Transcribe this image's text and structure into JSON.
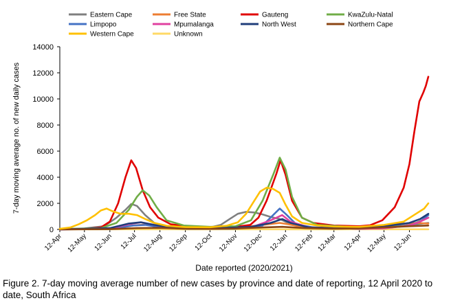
{
  "caption": "Figure 2. 7-day moving average number of new cases by province and date of reporting, 12 April 2020 to date, South Africa",
  "chart_data": {
    "type": "line",
    "title": "",
    "xlabel": "Date reported (2020/2021)",
    "ylabel": "7-day moving average no. of new daily cases",
    "ylim": [
      0,
      14000
    ],
    "yticks": [
      0,
      2000,
      4000,
      6000,
      8000,
      10000,
      12000,
      14000
    ],
    "ytick_labels": [
      "0",
      "2000",
      "4000",
      "6000",
      "8000",
      "10000",
      "12000",
      "14000"
    ],
    "xlim": [
      "2020-04-12",
      "2021-07-05"
    ],
    "xticks": [
      "2020-04-12",
      "2020-05-12",
      "2020-06-12",
      "2020-07-12",
      "2020-08-12",
      "2020-09-12",
      "2020-10-12",
      "2020-11-12",
      "2020-12-12",
      "2021-01-12",
      "2021-02-12",
      "2021-03-12",
      "2021-04-12",
      "2021-05-12",
      "2021-06-12"
    ],
    "xtick_labels": [
      "12-Apr",
      "12-May",
      "12-Jun",
      "12-Jul",
      "12-Aug",
      "12-Sep",
      "12-Oct",
      "12-Nov",
      "12-Dec",
      "12-Jan",
      "12-Feb",
      "12-Mar",
      "12-Apr",
      "12-May",
      "12-Jun"
    ],
    "grid": false,
    "legend_position": "top",
    "series": [
      {
        "name": "Eastern Cape",
        "color": "#7f7f7f",
        "points": [
          [
            "2020-04-12",
            20
          ],
          [
            "2020-05-12",
            80
          ],
          [
            "2020-06-05",
            250
          ],
          [
            "2020-06-20",
            900
          ],
          [
            "2020-07-01",
            1500
          ],
          [
            "2020-07-08",
            1950
          ],
          [
            "2020-07-15",
            1800
          ],
          [
            "2020-07-25",
            1100
          ],
          [
            "2020-08-05",
            500
          ],
          [
            "2020-08-25",
            200
          ],
          [
            "2020-09-20",
            120
          ],
          [
            "2020-10-12",
            150
          ],
          [
            "2020-10-25",
            350
          ],
          [
            "2020-11-05",
            800
          ],
          [
            "2020-11-15",
            1200
          ],
          [
            "2020-11-25",
            1350
          ],
          [
            "2020-12-05",
            1300
          ],
          [
            "2020-12-15",
            1150
          ],
          [
            "2020-12-25",
            950
          ],
          [
            "2021-01-05",
            800
          ],
          [
            "2021-01-15",
            500
          ],
          [
            "2021-02-01",
            200
          ],
          [
            "2021-03-01",
            100
          ],
          [
            "2021-04-12",
            100
          ],
          [
            "2021-05-12",
            200
          ],
          [
            "2021-06-05",
            300
          ],
          [
            "2021-06-20",
            400
          ],
          [
            "2021-07-05",
            500
          ]
        ]
      },
      {
        "name": "Free State",
        "color": "#ed7d31",
        "points": [
          [
            "2020-04-12",
            5
          ],
          [
            "2020-06-01",
            30
          ],
          [
            "2020-06-25",
            150
          ],
          [
            "2020-07-10",
            300
          ],
          [
            "2020-07-25",
            380
          ],
          [
            "2020-08-10",
            250
          ],
          [
            "2020-09-01",
            100
          ],
          [
            "2020-10-01",
            80
          ],
          [
            "2020-11-01",
            120
          ],
          [
            "2020-11-25",
            200
          ],
          [
            "2020-12-15",
            350
          ],
          [
            "2021-01-05",
            500
          ],
          [
            "2021-01-15",
            400
          ],
          [
            "2021-02-05",
            150
          ],
          [
            "2021-03-12",
            80
          ],
          [
            "2021-04-20",
            150
          ],
          [
            "2021-05-15",
            350
          ],
          [
            "2021-06-05",
            450
          ],
          [
            "2021-06-20",
            500
          ],
          [
            "2021-07-05",
            450
          ]
        ]
      },
      {
        "name": "Gauteng",
        "color": "#e00000",
        "points": [
          [
            "2020-04-12",
            20
          ],
          [
            "2020-05-12",
            40
          ],
          [
            "2020-06-01",
            150
          ],
          [
            "2020-06-12",
            600
          ],
          [
            "2020-06-22",
            2000
          ],
          [
            "2020-07-01",
            4000
          ],
          [
            "2020-07-08",
            5300
          ],
          [
            "2020-07-14",
            4700
          ],
          [
            "2020-07-22",
            3000
          ],
          [
            "2020-07-31",
            1700
          ],
          [
            "2020-08-10",
            900
          ],
          [
            "2020-08-25",
            400
          ],
          [
            "2020-09-15",
            220
          ],
          [
            "2020-10-12",
            180
          ],
          [
            "2020-11-12",
            200
          ],
          [
            "2020-11-30",
            350
          ],
          [
            "2020-12-10",
            900
          ],
          [
            "2020-12-20",
            2200
          ],
          [
            "2021-01-01",
            4300
          ],
          [
            "2021-01-06",
            5300
          ],
          [
            "2021-01-12",
            4200
          ],
          [
            "2021-01-20",
            2200
          ],
          [
            "2021-02-01",
            900
          ],
          [
            "2021-02-15",
            500
          ],
          [
            "2021-03-12",
            300
          ],
          [
            "2021-04-12",
            250
          ],
          [
            "2021-04-25",
            320
          ],
          [
            "2021-05-10",
            700
          ],
          [
            "2021-05-25",
            1700
          ],
          [
            "2021-06-05",
            3200
          ],
          [
            "2021-06-12",
            5000
          ],
          [
            "2021-06-18",
            7500
          ],
          [
            "2021-06-24",
            9800
          ],
          [
            "2021-06-29",
            10500
          ],
          [
            "2021-07-02",
            11000
          ],
          [
            "2021-07-05",
            11700
          ]
        ]
      },
      {
        "name": "KwaZulu-Natal",
        "color": "#70ad47",
        "points": [
          [
            "2020-04-12",
            20
          ],
          [
            "2020-06-01",
            100
          ],
          [
            "2020-06-20",
            500
          ],
          [
            "2020-07-05",
            1500
          ],
          [
            "2020-07-15",
            2500
          ],
          [
            "2020-07-22",
            3000
          ],
          [
            "2020-07-30",
            2600
          ],
          [
            "2020-08-08",
            1700
          ],
          [
            "2020-08-20",
            700
          ],
          [
            "2020-09-10",
            300
          ],
          [
            "2020-10-12",
            200
          ],
          [
            "2020-11-12",
            250
          ],
          [
            "2020-12-01",
            700
          ],
          [
            "2020-12-15",
            2200
          ],
          [
            "2020-12-28",
            4200
          ],
          [
            "2021-01-05",
            5500
          ],
          [
            "2021-01-12",
            4600
          ],
          [
            "2021-01-20",
            2500
          ],
          [
            "2021-02-01",
            900
          ],
          [
            "2021-02-20",
            350
          ],
          [
            "2021-04-12",
            150
          ],
          [
            "2021-05-12",
            150
          ],
          [
            "2021-06-12",
            300
          ],
          [
            "2021-07-05",
            900
          ]
        ]
      },
      {
        "name": "Limpopo",
        "color": "#4472c4",
        "points": [
          [
            "2020-04-12",
            5
          ],
          [
            "2020-06-15",
            50
          ],
          [
            "2020-07-10",
            300
          ],
          [
            "2020-07-25",
            350
          ],
          [
            "2020-08-15",
            150
          ],
          [
            "2020-09-15",
            50
          ],
          [
            "2020-11-12",
            60
          ],
          [
            "2020-12-15",
            300
          ],
          [
            "2021-01-05",
            1600
          ],
          [
            "2021-01-12",
            1200
          ],
          [
            "2021-01-25",
            400
          ],
          [
            "2021-02-15",
            150
          ],
          [
            "2021-04-12",
            50
          ],
          [
            "2021-05-12",
            100
          ],
          [
            "2021-06-12",
            300
          ],
          [
            "2021-06-25",
            600
          ],
          [
            "2021-07-05",
            1100
          ]
        ]
      },
      {
        "name": "Mpumalanga",
        "color": "#e040a0",
        "points": [
          [
            "2020-04-12",
            5
          ],
          [
            "2020-06-12",
            60
          ],
          [
            "2020-07-05",
            400
          ],
          [
            "2020-07-20",
            550
          ],
          [
            "2020-08-05",
            350
          ],
          [
            "2020-08-25",
            150
          ],
          [
            "2020-10-12",
            60
          ],
          [
            "2020-12-01",
            150
          ],
          [
            "2020-12-25",
            700
          ],
          [
            "2021-01-08",
            1100
          ],
          [
            "2021-01-18",
            600
          ],
          [
            "2021-02-10",
            150
          ],
          [
            "2021-04-12",
            50
          ],
          [
            "2021-05-12",
            80
          ],
          [
            "2021-06-12",
            300
          ],
          [
            "2021-06-25",
            600
          ],
          [
            "2021-07-05",
            900
          ]
        ]
      },
      {
        "name": "North West",
        "color": "#1f3d7a",
        "points": [
          [
            "2020-04-12",
            5
          ],
          [
            "2020-06-12",
            100
          ],
          [
            "2020-07-05",
            450
          ],
          [
            "2020-07-20",
            550
          ],
          [
            "2020-08-05",
            350
          ],
          [
            "2020-08-25",
            150
          ],
          [
            "2020-10-12",
            80
          ],
          [
            "2020-12-01",
            200
          ],
          [
            "2020-12-25",
            500
          ],
          [
            "2021-01-08",
            800
          ],
          [
            "2021-01-18",
            500
          ],
          [
            "2021-02-10",
            150
          ],
          [
            "2021-04-12",
            80
          ],
          [
            "2021-05-12",
            250
          ],
          [
            "2021-06-12",
            500
          ],
          [
            "2021-06-25",
            800
          ],
          [
            "2021-07-05",
            1200
          ]
        ]
      },
      {
        "name": "Northern Cape",
        "color": "#8b4513",
        "points": [
          [
            "2020-04-12",
            5
          ],
          [
            "2020-06-12",
            20
          ],
          [
            "2020-07-15",
            100
          ],
          [
            "2020-08-10",
            120
          ],
          [
            "2020-09-10",
            60
          ],
          [
            "2020-10-12",
            50
          ],
          [
            "2020-11-12",
            70
          ],
          [
            "2020-12-15",
            150
          ],
          [
            "2021-01-08",
            200
          ],
          [
            "2021-02-05",
            100
          ],
          [
            "2021-03-12",
            60
          ],
          [
            "2021-04-12",
            80
          ],
          [
            "2021-05-12",
            150
          ],
          [
            "2021-06-12",
            250
          ],
          [
            "2021-07-05",
            300
          ]
        ]
      },
      {
        "name": "Western Cape",
        "color": "#ffc000",
        "points": [
          [
            "2020-04-12",
            50
          ],
          [
            "2020-04-25",
            150
          ],
          [
            "2020-05-05",
            400
          ],
          [
            "2020-05-15",
            700
          ],
          [
            "2020-05-25",
            1100
          ],
          [
            "2020-06-01",
            1450
          ],
          [
            "2020-06-08",
            1600
          ],
          [
            "2020-06-15",
            1400
          ],
          [
            "2020-06-25",
            1200
          ],
          [
            "2020-07-05",
            1200
          ],
          [
            "2020-07-15",
            1100
          ],
          [
            "2020-07-25",
            800
          ],
          [
            "2020-08-05",
            500
          ],
          [
            "2020-08-20",
            280
          ],
          [
            "2020-09-12",
            180
          ],
          [
            "2020-10-12",
            170
          ],
          [
            "2020-11-01",
            280
          ],
          [
            "2020-11-15",
            550
          ],
          [
            "2020-11-25",
            1200
          ],
          [
            "2020-12-05",
            2200
          ],
          [
            "2020-12-12",
            2900
          ],
          [
            "2020-12-20",
            3200
          ],
          [
            "2020-12-28",
            3100
          ],
          [
            "2021-01-05",
            2800
          ],
          [
            "2021-01-12",
            1900
          ],
          [
            "2021-01-20",
            1000
          ],
          [
            "2021-02-01",
            500
          ],
          [
            "2021-02-20",
            300
          ],
          [
            "2021-03-12",
            220
          ],
          [
            "2021-04-12",
            200
          ],
          [
            "2021-05-12",
            350
          ],
          [
            "2021-06-05",
            600
          ],
          [
            "2021-06-20",
            1200
          ],
          [
            "2021-06-30",
            1600
          ],
          [
            "2021-07-05",
            2000
          ]
        ]
      },
      {
        "name": "Unknown",
        "color": "#ffd966",
        "points": [
          [
            "2020-04-12",
            0
          ],
          [
            "2020-06-12",
            10
          ],
          [
            "2020-09-12",
            5
          ],
          [
            "2020-12-12",
            10
          ],
          [
            "2021-03-12",
            5
          ],
          [
            "2021-07-05",
            10
          ]
        ]
      }
    ]
  }
}
